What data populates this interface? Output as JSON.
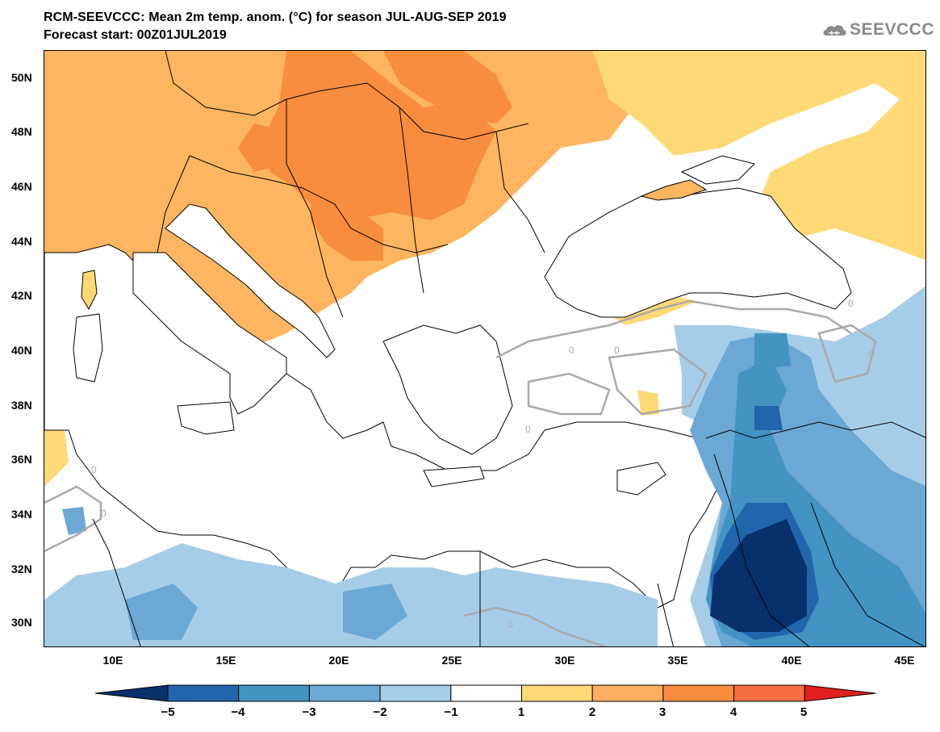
{
  "header": {
    "title": "RCM-SEEVCCC: Mean 2m temp. anom. (°C) for season JUL-AUG-SEP 2019",
    "subtitle": "Forecast start: 00Z01JUL2019",
    "logo_text": "SEEVCCC",
    "logo_icon": "cloud-icon"
  },
  "map": {
    "lat_labels": [
      "50N",
      "48N",
      "46N",
      "44N",
      "42N",
      "40N",
      "38N",
      "36N",
      "34N",
      "32N",
      "30N"
    ],
    "lon_labels": [
      "10E",
      "15E",
      "20E",
      "25E",
      "30E",
      "35E",
      "40E",
      "45E"
    ],
    "contour_label": "0"
  },
  "legend": {
    "labels": [
      "−5",
      "−4",
      "−3",
      "−2",
      "−1",
      "1",
      "2",
      "3",
      "4",
      "5"
    ],
    "colors": [
      "#08306b",
      "#2166ac",
      "#4393c3",
      "#6ba8d4",
      "#a6cde8",
      "#ffffff",
      "#fed976",
      "#fdae61",
      "#f88d3e",
      "#f46d43",
      "#e0201c"
    ]
  },
  "colors": {
    "warm1": "#fed976",
    "warm2": "#fdb55f",
    "warm3": "#f99a45",
    "cool1": "#a6cde8",
    "cool2": "#6ba8d4",
    "cool3": "#4393c3",
    "cool4": "#2166ac",
    "cool5": "#08306b",
    "contour": "#a9a9a9"
  }
}
